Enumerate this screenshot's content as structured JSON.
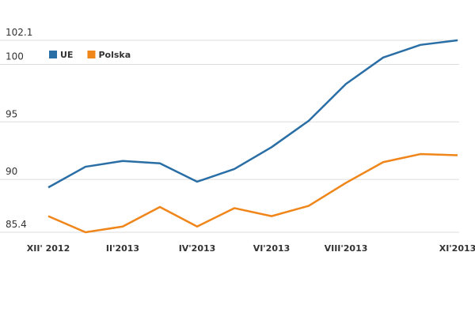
{
  "chart_data": {
    "type": "line",
    "categories": [
      "XII' 2012",
      null,
      "II'2013",
      null,
      "IV'2013",
      null,
      "VI'2013",
      null,
      "VIII'2013",
      null,
      null,
      "XI'2013"
    ],
    "series": [
      {
        "name": "UE",
        "color": "#2a6ea6",
        "values": [
          89.3,
          91.1,
          91.6,
          91.4,
          89.8,
          90.9,
          92.8,
          95.1,
          98.3,
          100.6,
          101.7,
          102.1
        ]
      },
      {
        "name": "Polska",
        "color": "#f08519",
        "values": [
          86.8,
          85.4,
          85.9,
          87.6,
          85.9,
          87.5,
          86.8,
          87.7,
          89.7,
          91.5,
          92.2,
          92.1
        ]
      }
    ],
    "ylim": [
      85.4,
      102.1
    ],
    "yticks": [
      85.4,
      90,
      95,
      100,
      102.1
    ],
    "grid": true,
    "legend": "top-left"
  }
}
